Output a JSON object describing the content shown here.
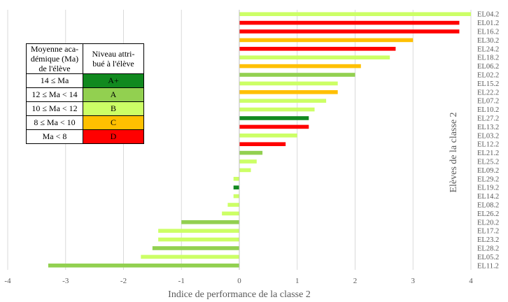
{
  "chart_data": {
    "type": "bar",
    "orientation": "horizontal",
    "xlabel": "Indice de performance de la classe 2",
    "ylabel": "Elèves de la classe 2",
    "xlim": [
      -4,
      4
    ],
    "x_ticks": [
      "-4",
      "-3",
      "-2",
      "-1",
      "0",
      "1",
      "2",
      "3",
      "4"
    ],
    "grid": "vertical",
    "categories": [
      "EL04.2",
      "EL01.2",
      "EL16.2",
      "EL30.2",
      "EL24.2",
      "EL18.2",
      "EL06.2",
      "EL02.2",
      "EL15.2",
      "EL22.2",
      "EL07.2",
      "EL10.2",
      "EL27.2",
      "EL13.2",
      "EL03.2",
      "EL12.2",
      "EL21.2",
      "EL25.2",
      "EL09.2",
      "EL29.2",
      "EL19.2",
      "EL14.2",
      "EL08.2",
      "EL26.2",
      "EL20.2",
      "EL17.2",
      "EL23.2",
      "EL28.2",
      "EL05.2",
      "EL11.2"
    ],
    "values": [
      4.0,
      3.8,
      3.8,
      3.0,
      2.7,
      2.6,
      2.1,
      2.0,
      1.7,
      1.7,
      1.5,
      1.3,
      1.2,
      1.2,
      1.0,
      0.8,
      0.4,
      0.3,
      0.2,
      -0.1,
      -0.1,
      -0.1,
      -0.2,
      -0.3,
      -1.0,
      -1.4,
      -1.4,
      -1.5,
      -1.7,
      -3.3
    ],
    "levels": [
      "B",
      "D",
      "D",
      "C",
      "D",
      "B",
      "C",
      "A",
      "B",
      "C",
      "B",
      "B",
      "A+",
      "D",
      "B",
      "D",
      "A",
      "B",
      "B",
      "B",
      "A+",
      "B",
      "B",
      "B",
      "A",
      "B",
      "B",
      "A",
      "B",
      "A"
    ]
  },
  "legend": {
    "header_ma": [
      "Moyenne aca-",
      "démique (Ma)",
      "de l'élève"
    ],
    "header_level": [
      "Niveau attri-",
      "bué à l'élève"
    ],
    "rows": [
      {
        "range": "14 ≤ Ma",
        "level": "A+",
        "color": "#11891f"
      },
      {
        "range": "12 ≤ Ma < 14",
        "level": "A",
        "color": "#92d050"
      },
      {
        "range": "10 ≤ Ma < 12",
        "level": "B",
        "color": "#ccff66"
      },
      {
        "range": "8 ≤ Ma < 10",
        "level": "C",
        "color": "#ffc000"
      },
      {
        "range": "Ma < 8",
        "level": "D",
        "color": "#ff0000"
      }
    ]
  },
  "colors": {
    "A+": "#11891f",
    "A": "#92d050",
    "B": "#ccff66",
    "C": "#ffc000",
    "D": "#ff0000",
    "grid": "#d9d9d9",
    "text": "#595959"
  }
}
